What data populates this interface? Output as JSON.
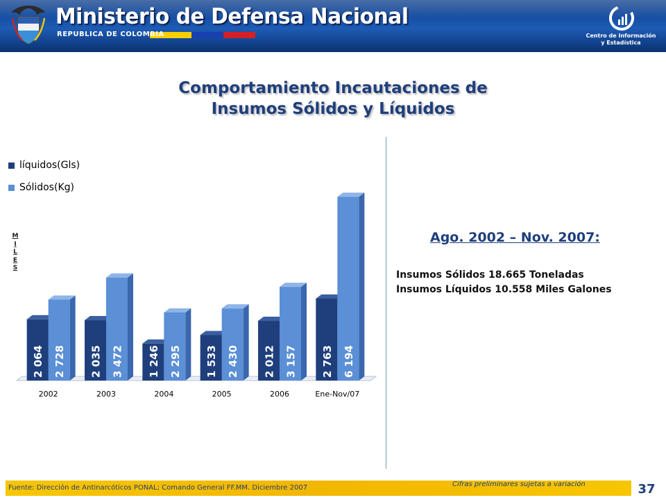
{
  "header": {
    "ministry_title": "Ministerio de Defensa Nacional",
    "republica": "REPUBLICA DE COLOMBIA",
    "center_line1": "Centro de Información",
    "center_line2": "y Estadística",
    "banner_color": "#1d5bb5",
    "seal_icon": "colombia-coat-of-arms-icon",
    "center_icon": "statistics-center-logo-icon"
  },
  "title": {
    "line1": "Comportamiento Incautaciones de",
    "line2": "Insumos Sólidos y Líquidos"
  },
  "side_label": "MILES",
  "summary": {
    "period": "Ago. 2002 – Nov. 2007:",
    "solid": "Insumos Sólidos 18.665 Toneladas",
    "liquid": "Insumos Líquidos 10.558 Miles Galones"
  },
  "footer": {
    "source": "Fuente: Dirección de Antinarcóticos PONAL; Comando General FF.MM. Diciembre 2007",
    "note": "Cifras preliminares sujetas a variación",
    "page_number": "37",
    "bar_color": "#f7c600"
  },
  "chart_data": {
    "type": "bar",
    "categories": [
      "2002",
      "2003",
      "2004",
      "2005",
      "2006",
      "Ene-Nov/07"
    ],
    "series": [
      {
        "name": "líquidos(Gls)",
        "color": "#1f3f7c",
        "values": [
          2064,
          2035,
          1246,
          1533,
          2012,
          2763
        ],
        "labels": [
          "2 064",
          "2 035",
          "1 246",
          "1 533",
          "2 012",
          "2 763"
        ]
      },
      {
        "name": "Sólidos(Kg)",
        "color": "#5b8fd6",
        "values": [
          2728,
          3472,
          2295,
          2430,
          3157,
          6194
        ],
        "labels": [
          "2 728",
          "3 472",
          "2 295",
          "2 430",
          "3 157",
          "6 194"
        ]
      }
    ],
    "ylim": [
      0,
      6600
    ],
    "grid": false,
    "legend": "top-left",
    "three_d": true
  }
}
